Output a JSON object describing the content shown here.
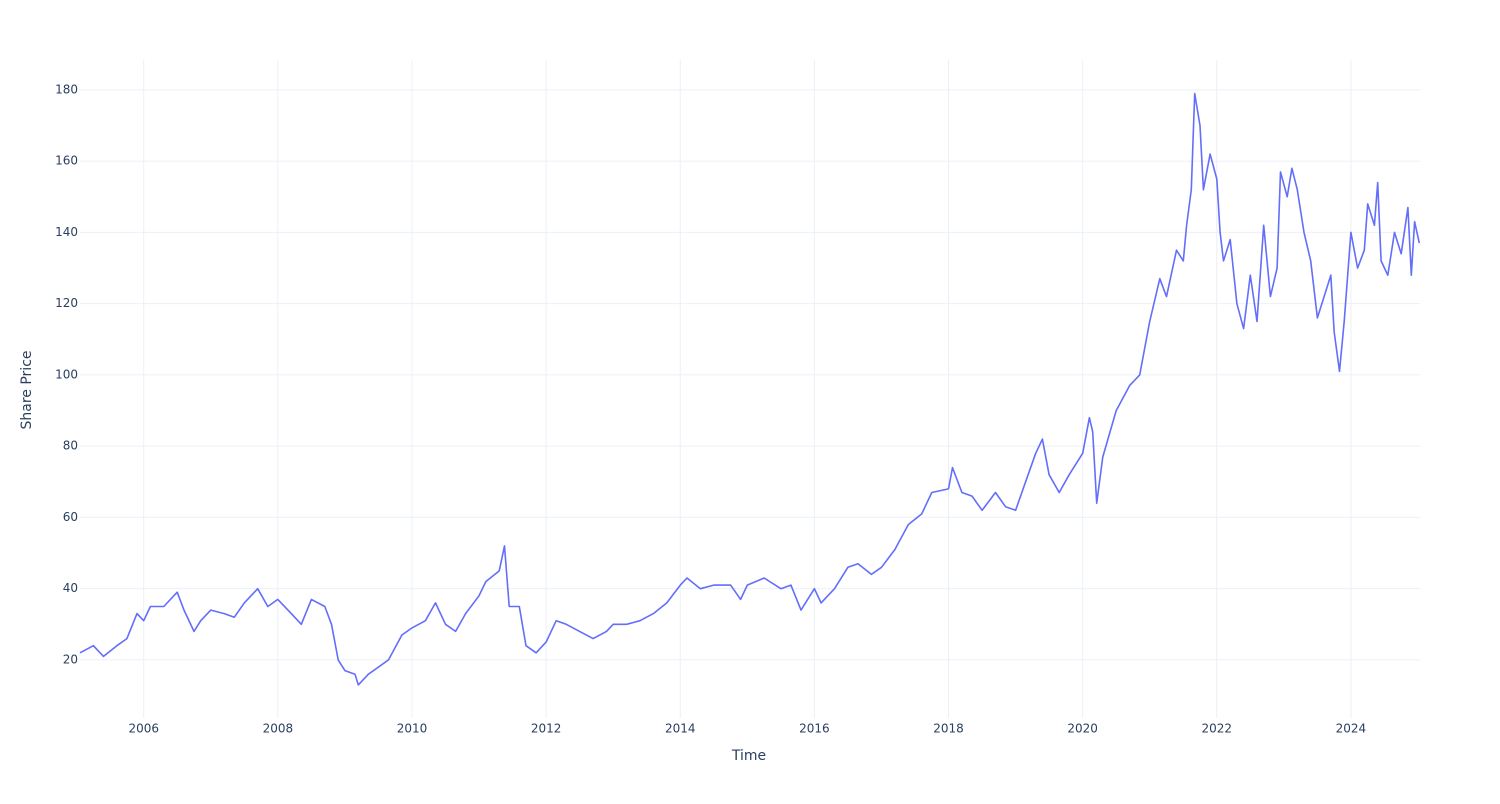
{
  "chart_data": {
    "type": "line",
    "x_label": "Time",
    "y_label": "Share Price",
    "x": [
      2005.05,
      2005.25,
      2005.4,
      2005.6,
      2005.75,
      2005.9,
      2006.0,
      2006.1,
      2006.3,
      2006.5,
      2006.6,
      2006.75,
      2006.85,
      2007.0,
      2007.2,
      2007.35,
      2007.5,
      2007.7,
      2007.85,
      2008.0,
      2008.2,
      2008.35,
      2008.5,
      2008.7,
      2008.8,
      2008.9,
      2009.0,
      2009.15,
      2009.2,
      2009.35,
      2009.5,
      2009.65,
      2009.85,
      2010.0,
      2010.2,
      2010.35,
      2010.5,
      2010.65,
      2010.8,
      2011.0,
      2011.1,
      2011.3,
      2011.38,
      2011.45,
      2011.6,
      2011.7,
      2011.85,
      2012.0,
      2012.15,
      2012.3,
      2012.5,
      2012.7,
      2012.9,
      2013.0,
      2013.2,
      2013.4,
      2013.6,
      2013.8,
      2014.0,
      2014.1,
      2014.3,
      2014.5,
      2014.75,
      2014.9,
      2015.0,
      2015.25,
      2015.5,
      2015.65,
      2015.8,
      2016.0,
      2016.1,
      2016.3,
      2016.5,
      2016.65,
      2016.85,
      2017.0,
      2017.2,
      2017.4,
      2017.6,
      2017.75,
      2018.0,
      2018.06,
      2018.2,
      2018.35,
      2018.5,
      2018.7,
      2018.85,
      2019.0,
      2019.15,
      2019.3,
      2019.4,
      2019.5,
      2019.65,
      2019.8,
      2020.0,
      2020.1,
      2020.15,
      2020.21,
      2020.3,
      2020.5,
      2020.7,
      2020.85,
      2021.0,
      2021.15,
      2021.25,
      2021.4,
      2021.5,
      2021.55,
      2021.62,
      2021.67,
      2021.75,
      2021.8,
      2021.9,
      2022.0,
      2022.05,
      2022.1,
      2022.2,
      2022.3,
      2022.4,
      2022.5,
      2022.6,
      2022.7,
      2022.8,
      2022.9,
      2022.95,
      2023.05,
      2023.12,
      2023.2,
      2023.3,
      2023.4,
      2023.5,
      2023.6,
      2023.7,
      2023.75,
      2023.83,
      2023.9,
      2024.0,
      2024.1,
      2024.2,
      2024.25,
      2024.35,
      2024.4,
      2024.45,
      2024.55,
      2024.65,
      2024.75,
      2024.85,
      2024.9,
      2024.95,
      2025.02
    ],
    "series": [
      {
        "color": "#636efa",
        "values": [
          22,
          24,
          21,
          24,
          26,
          33,
          31,
          35,
          35,
          39,
          34,
          28,
          31,
          34,
          33,
          32,
          36,
          40,
          35,
          37,
          33,
          30,
          37,
          35,
          30,
          20,
          17,
          16,
          13,
          16,
          18,
          20,
          27,
          29,
          31,
          36,
          30,
          28,
          33,
          38,
          42,
          45,
          52,
          35,
          35,
          24,
          22,
          25,
          31,
          30,
          28,
          26,
          28,
          30,
          30,
          31,
          33,
          36,
          41,
          43,
          40,
          41,
          41,
          37,
          41,
          43,
          40,
          41,
          34,
          40,
          36,
          40,
          46,
          47,
          44,
          46,
          51,
          58,
          61,
          67,
          68,
          74,
          67,
          66,
          62,
          67,
          63,
          62,
          70,
          78,
          82,
          72,
          67,
          72,
          78,
          88,
          84,
          64,
          77,
          90,
          97,
          100,
          115,
          127,
          122,
          135,
          132,
          142,
          152,
          179,
          170,
          152,
          162,
          155,
          140,
          132,
          138,
          120,
          113,
          128,
          115,
          142,
          122,
          130,
          157,
          150,
          158,
          152,
          140,
          132,
          116,
          122,
          128,
          112,
          101,
          115,
          140,
          130,
          135,
          148,
          142,
          154,
          132,
          128,
          140,
          134,
          147,
          128,
          143,
          137
        ]
      }
    ],
    "xlim": [
      2005.05,
      2025.03
    ],
    "ylim": [
      3.7,
      188.4
    ],
    "xticks": [
      2006,
      2008,
      2010,
      2012,
      2014,
      2016,
      2018,
      2020,
      2022,
      2024
    ],
    "yticks": [
      20,
      40,
      60,
      80,
      100,
      120,
      140,
      160,
      180
    ],
    "grid": true
  }
}
